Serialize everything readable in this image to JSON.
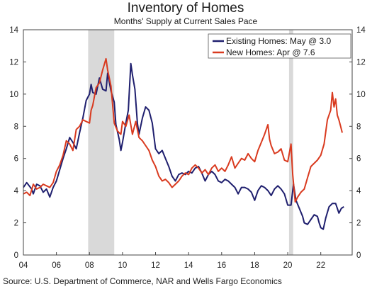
{
  "chart_data": {
    "type": "line",
    "title": "Inventory of Homes",
    "subtitle": "Months' Supply at Current Sales Pace",
    "source": "Source: U.S. Department of Commerce, NAR and Wells Fargo Economics",
    "xlim": [
      2004.0,
      2023.9
    ],
    "ylim": [
      0,
      14
    ],
    "x_ticks": [
      {
        "value": 2004,
        "label": "04"
      },
      {
        "value": 2006,
        "label": "06"
      },
      {
        "value": 2008,
        "label": "08"
      },
      {
        "value": 2010,
        "label": "10"
      },
      {
        "value": 2012,
        "label": "12"
      },
      {
        "value": 2014,
        "label": "14"
      },
      {
        "value": 2016,
        "label": "16"
      },
      {
        "value": 2018,
        "label": "18"
      },
      {
        "value": 2020,
        "label": "20"
      },
      {
        "value": 2022,
        "label": "22"
      }
    ],
    "y_ticks": [
      0,
      2,
      4,
      6,
      8,
      10,
      12,
      14
    ],
    "recessions": [
      {
        "start": 2007.92,
        "end": 2009.5
      },
      {
        "start": 2020.08,
        "end": 2020.33
      }
    ],
    "grid": false,
    "legend_placement": "top-right",
    "series": [
      {
        "name": "Existing Homes: May @ 3.0",
        "color": "#1f1f6e",
        "points": [
          [
            2004.0,
            4.2
          ],
          [
            2004.2,
            4.5
          ],
          [
            2004.5,
            4.1
          ],
          [
            2004.6,
            3.8
          ],
          [
            2004.8,
            4.4
          ],
          [
            2005.0,
            4.3
          ],
          [
            2005.2,
            3.9
          ],
          [
            2005.4,
            4.1
          ],
          [
            2005.6,
            3.6
          ],
          [
            2005.8,
            4.2
          ],
          [
            2006.0,
            4.6
          ],
          [
            2006.2,
            5.3
          ],
          [
            2006.4,
            6.0
          ],
          [
            2006.6,
            6.6
          ],
          [
            2006.8,
            7.3
          ],
          [
            2007.0,
            7.0
          ],
          [
            2007.2,
            6.6
          ],
          [
            2007.4,
            7.6
          ],
          [
            2007.6,
            8.5
          ],
          [
            2007.8,
            9.6
          ],
          [
            2008.0,
            10.0
          ],
          [
            2008.1,
            10.6
          ],
          [
            2008.2,
            10.1
          ],
          [
            2008.4,
            10.0
          ],
          [
            2008.6,
            11.0
          ],
          [
            2008.8,
            10.3
          ],
          [
            2009.0,
            10.2
          ],
          [
            2009.1,
            11.3
          ],
          [
            2009.3,
            10.2
          ],
          [
            2009.5,
            9.5
          ],
          [
            2009.6,
            8.1
          ],
          [
            2009.8,
            7.2
          ],
          [
            2009.9,
            6.5
          ],
          [
            2010.0,
            7.0
          ],
          [
            2010.2,
            8.2
          ],
          [
            2010.35,
            9.0
          ],
          [
            2010.5,
            11.9
          ],
          [
            2010.6,
            11.2
          ],
          [
            2010.75,
            10.3
          ],
          [
            2010.9,
            8.2
          ],
          [
            2011.0,
            7.5
          ],
          [
            2011.2,
            8.5
          ],
          [
            2011.4,
            9.2
          ],
          [
            2011.6,
            9.0
          ],
          [
            2011.8,
            8.2
          ],
          [
            2012.0,
            6.6
          ],
          [
            2012.2,
            6.3
          ],
          [
            2012.4,
            6.5
          ],
          [
            2012.6,
            6.0
          ],
          [
            2012.8,
            5.5
          ],
          [
            2013.0,
            4.9
          ],
          [
            2013.2,
            4.6
          ],
          [
            2013.4,
            5.0
          ],
          [
            2013.6,
            5.1
          ],
          [
            2013.8,
            5.0
          ],
          [
            2014.0,
            5.2
          ],
          [
            2014.2,
            5.1
          ],
          [
            2014.4,
            5.4
          ],
          [
            2014.6,
            5.5
          ],
          [
            2014.8,
            5.1
          ],
          [
            2015.0,
            4.6
          ],
          [
            2015.2,
            5.0
          ],
          [
            2015.4,
            5.2
          ],
          [
            2015.6,
            5.0
          ],
          [
            2015.8,
            4.6
          ],
          [
            2016.0,
            4.5
          ],
          [
            2016.2,
            4.7
          ],
          [
            2016.4,
            4.6
          ],
          [
            2016.6,
            4.4
          ],
          [
            2016.8,
            4.2
          ],
          [
            2017.0,
            3.8
          ],
          [
            2017.2,
            4.2
          ],
          [
            2017.4,
            4.2
          ],
          [
            2017.6,
            4.1
          ],
          [
            2017.8,
            3.9
          ],
          [
            2018.0,
            3.4
          ],
          [
            2018.2,
            4.0
          ],
          [
            2018.4,
            4.3
          ],
          [
            2018.6,
            4.2
          ],
          [
            2018.8,
            4.0
          ],
          [
            2019.0,
            3.7
          ],
          [
            2019.2,
            4.1
          ],
          [
            2019.4,
            4.3
          ],
          [
            2019.6,
            4.1
          ],
          [
            2019.8,
            3.8
          ],
          [
            2020.0,
            3.1
          ],
          [
            2020.2,
            3.1
          ],
          [
            2020.35,
            4.4
          ],
          [
            2020.5,
            3.4
          ],
          [
            2020.7,
            2.9
          ],
          [
            2020.9,
            2.4
          ],
          [
            2021.0,
            2.0
          ],
          [
            2021.2,
            1.9
          ],
          [
            2021.4,
            2.2
          ],
          [
            2021.6,
            2.5
          ],
          [
            2021.8,
            2.4
          ],
          [
            2021.9,
            2.0
          ],
          [
            2022.0,
            1.7
          ],
          [
            2022.15,
            1.6
          ],
          [
            2022.3,
            2.3
          ],
          [
            2022.5,
            3.0
          ],
          [
            2022.7,
            3.2
          ],
          [
            2022.9,
            3.2
          ],
          [
            2023.0,
            2.9
          ],
          [
            2023.1,
            2.6
          ],
          [
            2023.25,
            2.9
          ],
          [
            2023.4,
            3.0
          ]
        ]
      },
      {
        "name": "New Homes: Apr @ 7.6",
        "color": "#d93a1f",
        "points": [
          [
            2004.0,
            3.8
          ],
          [
            2004.2,
            3.9
          ],
          [
            2004.4,
            3.7
          ],
          [
            2004.6,
            4.4
          ],
          [
            2004.8,
            4.1
          ],
          [
            2005.0,
            4.2
          ],
          [
            2005.2,
            4.4
          ],
          [
            2005.4,
            4.3
          ],
          [
            2005.6,
            4.2
          ],
          [
            2005.8,
            4.5
          ],
          [
            2006.0,
            5.2
          ],
          [
            2006.2,
            5.6
          ],
          [
            2006.4,
            6.2
          ],
          [
            2006.6,
            7.1
          ],
          [
            2006.8,
            6.9
          ],
          [
            2007.0,
            6.5
          ],
          [
            2007.2,
            7.8
          ],
          [
            2007.4,
            8.0
          ],
          [
            2007.6,
            8.4
          ],
          [
            2007.8,
            8.3
          ],
          [
            2008.0,
            8.2
          ],
          [
            2008.1,
            9.0
          ],
          [
            2008.2,
            9.3
          ],
          [
            2008.4,
            10.4
          ],
          [
            2008.6,
            10.7
          ],
          [
            2008.8,
            11.5
          ],
          [
            2009.0,
            12.2
          ],
          [
            2009.1,
            11.5
          ],
          [
            2009.3,
            10.5
          ],
          [
            2009.5,
            8.2
          ],
          [
            2009.7,
            7.7
          ],
          [
            2009.9,
            7.5
          ],
          [
            2010.0,
            8.3
          ],
          [
            2010.2,
            8.0
          ],
          [
            2010.4,
            8.7
          ],
          [
            2010.6,
            7.5
          ],
          [
            2010.8,
            8.3
          ],
          [
            2011.0,
            7.3
          ],
          [
            2011.2,
            7.1
          ],
          [
            2011.4,
            6.8
          ],
          [
            2011.6,
            6.5
          ],
          [
            2011.8,
            5.9
          ],
          [
            2012.0,
            5.5
          ],
          [
            2012.2,
            4.9
          ],
          [
            2012.4,
            4.6
          ],
          [
            2012.6,
            4.7
          ],
          [
            2012.8,
            4.5
          ],
          [
            2013.0,
            4.2
          ],
          [
            2013.2,
            4.4
          ],
          [
            2013.4,
            4.6
          ],
          [
            2013.6,
            4.9
          ],
          [
            2013.8,
            5.1
          ],
          [
            2014.0,
            5.0
          ],
          [
            2014.2,
            5.4
          ],
          [
            2014.4,
            5.6
          ],
          [
            2014.6,
            5.4
          ],
          [
            2014.8,
            5.1
          ],
          [
            2015.0,
            5.3
          ],
          [
            2015.2,
            5.0
          ],
          [
            2015.4,
            5.4
          ],
          [
            2015.6,
            5.6
          ],
          [
            2015.8,
            5.2
          ],
          [
            2016.0,
            5.4
          ],
          [
            2016.2,
            5.2
          ],
          [
            2016.4,
            5.6
          ],
          [
            2016.6,
            6.1
          ],
          [
            2016.8,
            5.4
          ],
          [
            2017.0,
            5.7
          ],
          [
            2017.2,
            6.0
          ],
          [
            2017.4,
            5.9
          ],
          [
            2017.6,
            6.3
          ],
          [
            2017.8,
            6.0
          ],
          [
            2018.0,
            5.8
          ],
          [
            2018.2,
            6.5
          ],
          [
            2018.4,
            7.0
          ],
          [
            2018.6,
            7.5
          ],
          [
            2018.8,
            8.1
          ],
          [
            2018.9,
            7.2
          ],
          [
            2019.0,
            6.8
          ],
          [
            2019.2,
            6.3
          ],
          [
            2019.4,
            6.4
          ],
          [
            2019.6,
            6.6
          ],
          [
            2019.8,
            5.9
          ],
          [
            2020.0,
            5.8
          ],
          [
            2020.2,
            6.9
          ],
          [
            2020.3,
            5.0
          ],
          [
            2020.45,
            3.3
          ],
          [
            2020.6,
            3.6
          ],
          [
            2020.8,
            3.9
          ],
          [
            2021.0,
            4.1
          ],
          [
            2021.2,
            4.8
          ],
          [
            2021.4,
            5.5
          ],
          [
            2021.6,
            5.7
          ],
          [
            2021.8,
            5.9
          ],
          [
            2022.0,
            6.2
          ],
          [
            2022.2,
            6.9
          ],
          [
            2022.4,
            8.4
          ],
          [
            2022.6,
            9.0
          ],
          [
            2022.7,
            10.1
          ],
          [
            2022.8,
            9.2
          ],
          [
            2022.9,
            9.7
          ],
          [
            2023.0,
            8.7
          ],
          [
            2023.1,
            8.4
          ],
          [
            2023.2,
            8.0
          ],
          [
            2023.3,
            7.6
          ]
        ]
      }
    ]
  }
}
